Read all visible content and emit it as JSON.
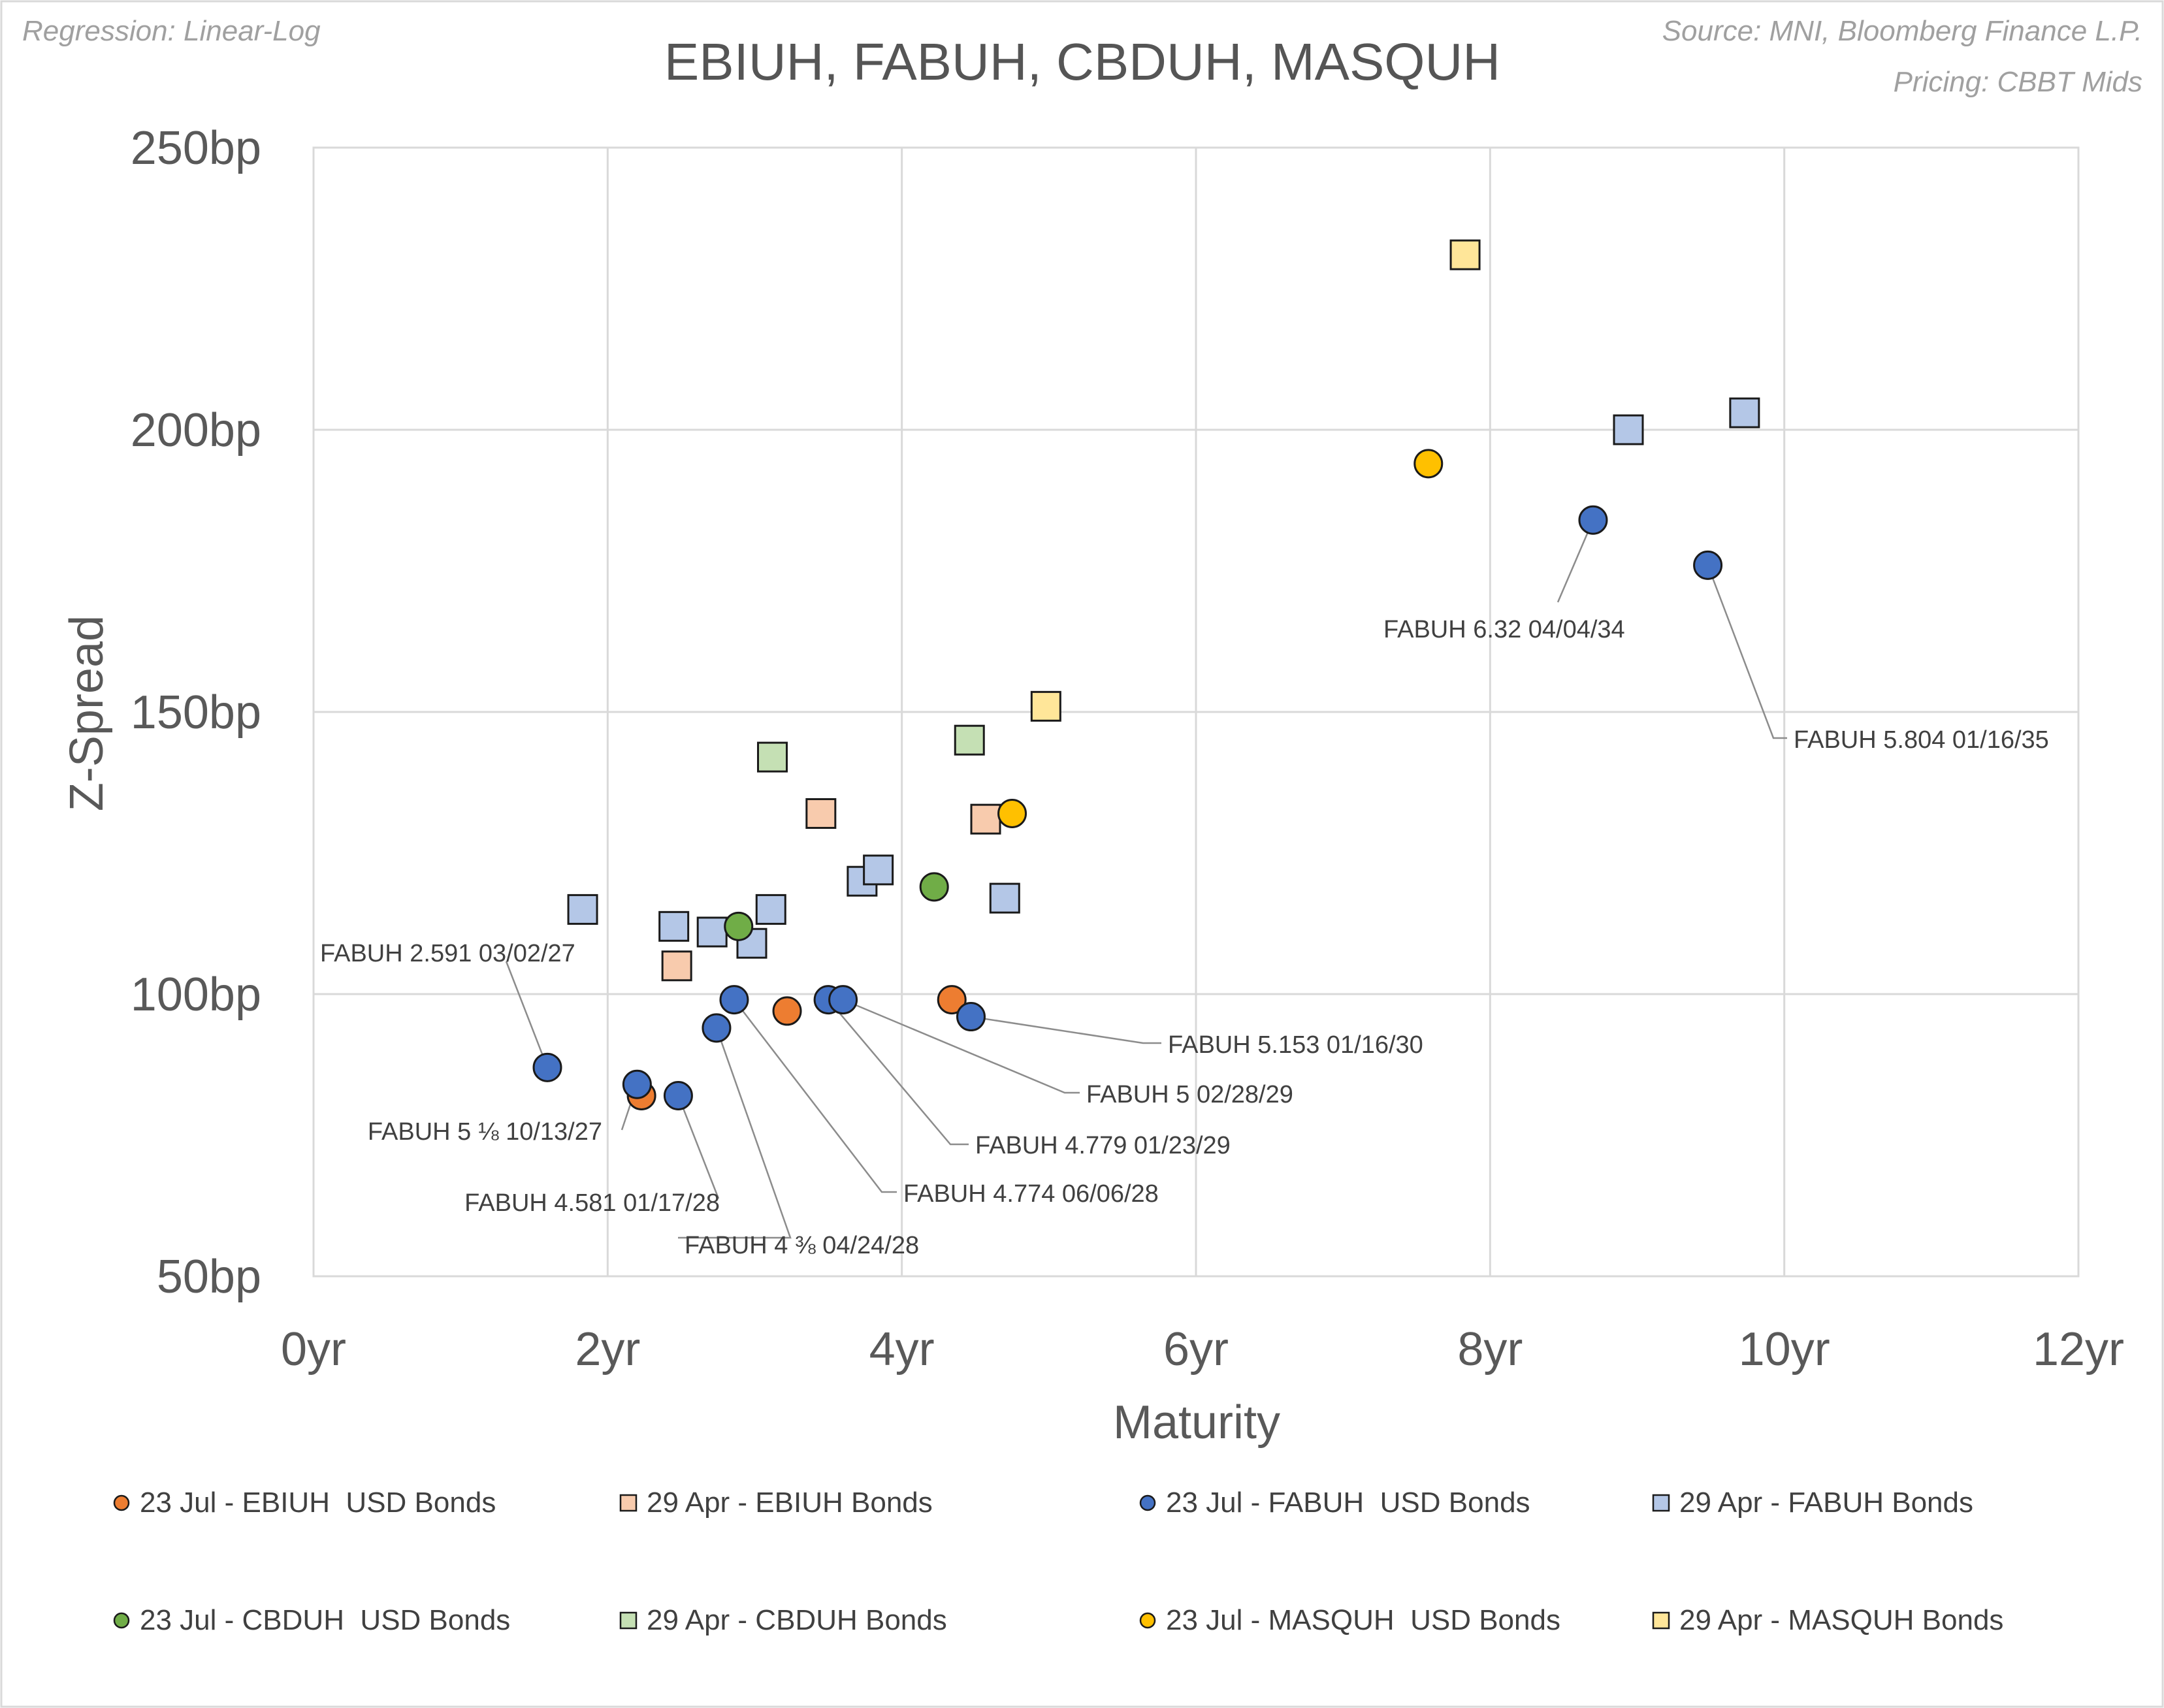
{
  "notes": {
    "regression": "Regression: Linear-Log",
    "source": "Source: MNI, Bloomberg Finance L.P.",
    "pricing": "Pricing: CBBT Mids"
  },
  "chart_data": {
    "type": "scatter",
    "title": "EBIUH, FABUH, CBDUH, MASQUH",
    "xlabel": "Maturity",
    "ylabel": "Z-Spread",
    "xlim": [
      0,
      12
    ],
    "ylim": [
      50,
      250
    ],
    "x_ticks": [
      0,
      2,
      4,
      6,
      8,
      10,
      12
    ],
    "y_ticks": [
      50,
      100,
      150,
      200,
      250
    ],
    "x_tick_labels": [
      "0yr",
      "2yr",
      "4yr",
      "6yr",
      "8yr",
      "10yr",
      "12yr"
    ],
    "y_tick_labels": [
      "50bp",
      "100bp",
      "150bp",
      "200bp",
      "250bp"
    ],
    "grid": true,
    "legend_position": "bottom",
    "series": [
      {
        "name": "23 Jul - EBIUH  USD Bonds",
        "marker": "circle",
        "color": "#ED7D31",
        "points": [
          [
            2.23,
            82
          ],
          [
            3.22,
            97
          ],
          [
            4.34,
            99
          ]
        ]
      },
      {
        "name": "29 Apr - EBIUH Bonds",
        "marker": "square",
        "color": "#F8CBAD",
        "points": [
          [
            2.47,
            105
          ],
          [
            3.45,
            132
          ],
          [
            4.57,
            131
          ]
        ]
      },
      {
        "name": "23 Jul - FABUH  USD Bonds",
        "marker": "circle",
        "color": "#4472C4",
        "points": [
          [
            1.59,
            87
          ],
          [
            2.2,
            84
          ],
          [
            2.48,
            82
          ],
          [
            2.74,
            94
          ],
          [
            2.86,
            99
          ],
          [
            3.5,
            99
          ],
          [
            3.6,
            99
          ],
          [
            4.47,
            96
          ],
          [
            8.7,
            184
          ],
          [
            9.48,
            176
          ]
        ]
      },
      {
        "name": "29 Apr - FABUH Bonds",
        "marker": "square",
        "color": "#B4C7E7",
        "points": [
          [
            1.83,
            115
          ],
          [
            2.45,
            112
          ],
          [
            2.71,
            111
          ],
          [
            2.98,
            109
          ],
          [
            3.11,
            115
          ],
          [
            3.73,
            120
          ],
          [
            3.84,
            122
          ],
          [
            4.7,
            117
          ],
          [
            8.94,
            200
          ],
          [
            9.73,
            203
          ]
        ]
      },
      {
        "name": "23 Jul - CBDUH  USD Bonds",
        "marker": "circle",
        "color": "#70AD47",
        "points": [
          [
            2.89,
            112
          ],
          [
            4.22,
            119
          ]
        ]
      },
      {
        "name": "29 Apr - CBDUH Bonds",
        "marker": "square",
        "color": "#C5E0B4",
        "points": [
          [
            3.12,
            142
          ],
          [
            4.46,
            145
          ]
        ]
      },
      {
        "name": "23 Jul - MASQUH  USD Bonds",
        "marker": "circle",
        "color": "#FFC000",
        "points": [
          [
            4.75,
            132
          ],
          [
            7.58,
            194
          ]
        ]
      },
      {
        "name": "29 Apr - MASQUH Bonds",
        "marker": "square",
        "color": "#FFE699",
        "points": [
          [
            4.98,
            151
          ],
          [
            7.83,
            231
          ]
        ]
      }
    ],
    "annotations": [
      {
        "text": "FABUH 2.591 03/02/27",
        "x": 1.59,
        "y": 87
      },
      {
        "text": "FABUH 5 ⅛ 10/13/27",
        "x": 2.2,
        "y": 84
      },
      {
        "text": "FABUH 4.581 01/17/28",
        "x": 2.48,
        "y": 82
      },
      {
        "text": "FABUH 4 ⅜ 04/24/28",
        "x": 2.74,
        "y": 94
      },
      {
        "text": "FABUH 4.774 06/06/28",
        "x": 2.86,
        "y": 99
      },
      {
        "text": "FABUH 4.779 01/23/29",
        "x": 3.5,
        "y": 99
      },
      {
        "text": "FABUH 5 02/28/29",
        "x": 3.6,
        "y": 99
      },
      {
        "text": "FABUH 5.153 01/16/30",
        "x": 4.47,
        "y": 96
      },
      {
        "text": "FABUH 6.32 04/04/34",
        "x": 8.7,
        "y": 184
      },
      {
        "text": "FABUH 5.804 01/16/35",
        "x": 9.48,
        "y": 176
      }
    ]
  }
}
